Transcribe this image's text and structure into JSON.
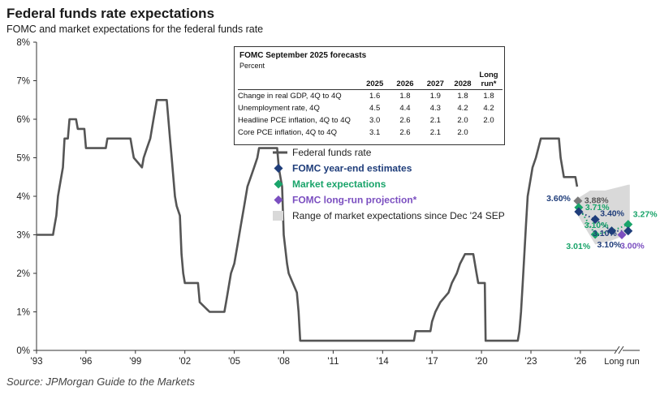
{
  "title": "Federal funds rate expectations",
  "subtitle": "FOMC and market expectations for the federal funds rate",
  "source": "Source: JPMorgan Guide to the Markets",
  "colors": {
    "fed_funds": "#555555",
    "fomc": "#1f3d7a",
    "market": "#19a46a",
    "longrun": "#7b4fc0",
    "range": "#d9d9d9"
  },
  "table": {
    "title": "FOMC September 2025 forecasts",
    "unit": "Percent",
    "columns": [
      "2025",
      "2026",
      "2027",
      "2028",
      "Long run*"
    ],
    "rows": [
      {
        "label": "Change in real GDP, 4Q to 4Q",
        "values": [
          "1.6",
          "1.8",
          "1.9",
          "1.8",
          "1.8"
        ]
      },
      {
        "label": "Unemployment rate, 4Q",
        "values": [
          "4.5",
          "4.4",
          "4.3",
          "4.2",
          "4.2"
        ]
      },
      {
        "label": "Headline PCE inflation, 4Q to 4Q",
        "values": [
          "3.0",
          "2.6",
          "2.1",
          "2.0",
          "2.0"
        ]
      },
      {
        "label": "Core PCE inflation, 4Q to 4Q",
        "values": [
          "3.1",
          "2.6",
          "2.1",
          "2.0",
          ""
        ]
      }
    ]
  },
  "legend": [
    {
      "label": "Federal funds rate",
      "kind": "line",
      "color": "#555555"
    },
    {
      "label": "FOMC year-end estimates",
      "kind": "diamond",
      "color": "#1f3d7a"
    },
    {
      "label": "Market expectations",
      "kind": "diamond",
      "color": "#19a46a"
    },
    {
      "label": "FOMC long-run projection*",
      "kind": "diamond",
      "color": "#7b4fc0"
    },
    {
      "label": "Range of market expectations since Dec '24 SEP",
      "kind": "box",
      "color": "#d9d9d9"
    }
  ],
  "chart_data": {
    "type": "line",
    "xlabel": "",
    "ylabel": "",
    "ylim": [
      0,
      8
    ],
    "xlim": [
      1993,
      2029.6
    ],
    "y_ticks": [
      0,
      1,
      2,
      3,
      4,
      5,
      6,
      7,
      8
    ],
    "y_tick_labels": [
      "0%",
      "1%",
      "2%",
      "3%",
      "4%",
      "5%",
      "6%",
      "7%",
      "8%"
    ],
    "x_ticks": [
      1993,
      1996,
      1999,
      2002,
      2005,
      2008,
      2011,
      2014,
      2017,
      2020,
      2023,
      2026
    ],
    "x_tick_labels": [
      "'93",
      "'96",
      "'99",
      "'02",
      "'05",
      "'08",
      "'11",
      "'14",
      "'17",
      "'20",
      "'23",
      "'26"
    ],
    "longrun_label": "Long run",
    "series": [
      {
        "name": "Federal funds rate",
        "points": [
          [
            1993.0,
            3.0
          ],
          [
            1994.0,
            3.0
          ],
          [
            1994.1,
            3.25
          ],
          [
            1994.2,
            3.5
          ],
          [
            1994.3,
            4.0
          ],
          [
            1994.4,
            4.25
          ],
          [
            1994.6,
            4.75
          ],
          [
            1994.7,
            5.5
          ],
          [
            1994.9,
            5.5
          ],
          [
            1995.0,
            6.0
          ],
          [
            1995.4,
            6.0
          ],
          [
            1995.5,
            5.75
          ],
          [
            1995.9,
            5.75
          ],
          [
            1996.0,
            5.25
          ],
          [
            1997.2,
            5.25
          ],
          [
            1997.3,
            5.5
          ],
          [
            1998.7,
            5.5
          ],
          [
            1998.8,
            5.25
          ],
          [
            1998.9,
            5.0
          ],
          [
            1999.4,
            4.75
          ],
          [
            1999.5,
            5.0
          ],
          [
            1999.7,
            5.25
          ],
          [
            1999.9,
            5.5
          ],
          [
            2000.0,
            5.75
          ],
          [
            2000.1,
            6.0
          ],
          [
            2000.3,
            6.5
          ],
          [
            2000.9,
            6.5
          ],
          [
            2001.0,
            6.0
          ],
          [
            2001.1,
            5.5
          ],
          [
            2001.2,
            5.0
          ],
          [
            2001.3,
            4.5
          ],
          [
            2001.4,
            4.0
          ],
          [
            2001.5,
            3.75
          ],
          [
            2001.7,
            3.5
          ],
          [
            2001.75,
            3.0
          ],
          [
            2001.8,
            2.5
          ],
          [
            2001.9,
            2.0
          ],
          [
            2002.0,
            1.75
          ],
          [
            2002.8,
            1.75
          ],
          [
            2002.9,
            1.25
          ],
          [
            2003.5,
            1.0
          ],
          [
            2004.4,
            1.0
          ],
          [
            2004.5,
            1.25
          ],
          [
            2004.6,
            1.5
          ],
          [
            2004.7,
            1.75
          ],
          [
            2004.8,
            2.0
          ],
          [
            2005.0,
            2.25
          ],
          [
            2005.2,
            2.75
          ],
          [
            2005.4,
            3.25
          ],
          [
            2005.6,
            3.75
          ],
          [
            2005.8,
            4.25
          ],
          [
            2006.0,
            4.5
          ],
          [
            2006.2,
            4.75
          ],
          [
            2006.4,
            5.0
          ],
          [
            2006.5,
            5.25
          ],
          [
            2007.6,
            5.25
          ],
          [
            2007.7,
            4.75
          ],
          [
            2007.8,
            4.5
          ],
          [
            2007.9,
            4.25
          ],
          [
            2008.0,
            3.0
          ],
          [
            2008.2,
            2.25
          ],
          [
            2008.3,
            2.0
          ],
          [
            2008.8,
            1.5
          ],
          [
            2008.9,
            1.0
          ],
          [
            2009.0,
            0.25
          ],
          [
            2015.9,
            0.25
          ],
          [
            2016.0,
            0.5
          ],
          [
            2016.9,
            0.5
          ],
          [
            2017.0,
            0.75
          ],
          [
            2017.2,
            1.0
          ],
          [
            2017.5,
            1.25
          ],
          [
            2018.0,
            1.5
          ],
          [
            2018.2,
            1.75
          ],
          [
            2018.5,
            2.0
          ],
          [
            2018.7,
            2.25
          ],
          [
            2019.0,
            2.5
          ],
          [
            2019.5,
            2.5
          ],
          [
            2019.6,
            2.25
          ],
          [
            2019.7,
            2.0
          ],
          [
            2019.8,
            1.75
          ],
          [
            2020.2,
            1.75
          ],
          [
            2020.25,
            0.25
          ],
          [
            2022.2,
            0.25
          ],
          [
            2022.3,
            0.5
          ],
          [
            2022.4,
            1.0
          ],
          [
            2022.5,
            1.75
          ],
          [
            2022.6,
            2.5
          ],
          [
            2022.7,
            3.25
          ],
          [
            2022.8,
            4.0
          ],
          [
            2023.0,
            4.5
          ],
          [
            2023.1,
            4.75
          ],
          [
            2023.3,
            5.0
          ],
          [
            2023.6,
            5.5
          ],
          [
            2024.7,
            5.5
          ],
          [
            2024.8,
            5.0
          ],
          [
            2024.9,
            4.75
          ],
          [
            2025.0,
            4.5
          ],
          [
            2025.7,
            4.5
          ],
          [
            2025.8,
            4.25
          ]
        ]
      }
    ],
    "fomc_estimates": [
      {
        "x": 2025.9,
        "y": 3.6,
        "label": "3.60%"
      },
      {
        "x": 2026.9,
        "y": 3.4,
        "label": "3.40%"
      },
      {
        "x": 2027.9,
        "y": 3.1,
        "label": "3.10%"
      },
      {
        "x": 2028.9,
        "y": 3.1,
        "label": "3.10%"
      }
    ],
    "market_expectations": [
      {
        "x": 2025.9,
        "y": 3.71,
        "label": "3.71%"
      },
      {
        "x": 2026.9,
        "y": 3.01,
        "label": "3.01%"
      },
      {
        "x": 2027.9,
        "y": 3.1,
        "label": "3.10%"
      },
      {
        "x": 2028.9,
        "y": 3.27,
        "label": "3.27%"
      }
    ],
    "gray_marker": {
      "x": 2025.85,
      "y": 3.88,
      "label": "3.88%"
    },
    "longrun_projection": {
      "y": 3.0,
      "label": "3.00%"
    },
    "range_upper": [
      [
        2025.85,
        3.95
      ],
      [
        2026.6,
        4.15
      ],
      [
        2027.5,
        4.15
      ],
      [
        2028.9,
        4.3
      ],
      [
        2029.0,
        4.3
      ]
    ],
    "range_lower": [
      [
        2029.0,
        3.05
      ],
      [
        2027.9,
        2.85
      ],
      [
        2026.9,
        2.75
      ],
      [
        2025.85,
        3.5
      ]
    ]
  }
}
